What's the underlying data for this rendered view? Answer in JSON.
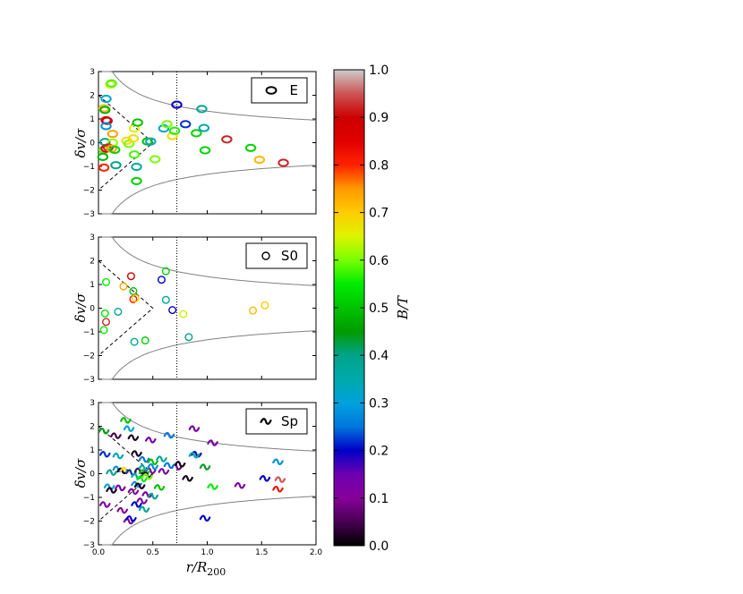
{
  "chart_data": [
    {
      "panel": "E",
      "type": "scatter",
      "marker": "ellipse",
      "legend_label": "E",
      "legend_position": "top-right",
      "xlim": [
        0.0,
        2.0
      ],
      "ylim": [
        -3,
        3
      ],
      "xticks": [
        "0.0",
        "0.5",
        "1.0",
        "1.5",
        "2.0"
      ],
      "yticks": [
        "−3",
        "−2",
        "−1",
        "0",
        "1",
        "2",
        "3"
      ],
      "xlabel": "",
      "ylabel": "δv/σ",
      "points": [
        {
          "x": 0.11,
          "y": 2.45,
          "bt": 0.65
        },
        {
          "x": 0.12,
          "y": 2.5,
          "bt": 0.58
        },
        {
          "x": 0.07,
          "y": 1.85,
          "bt": 0.32
        },
        {
          "x": 0.05,
          "y": 1.45,
          "bt": 0.72
        },
        {
          "x": 0.06,
          "y": 1.38,
          "bt": 0.48
        },
        {
          "x": 0.07,
          "y": 0.95,
          "bt": 0.84
        },
        {
          "x": 0.08,
          "y": 0.92,
          "bt": 0.9
        },
        {
          "x": 0.07,
          "y": 0.7,
          "bt": 0.28
        },
        {
          "x": 0.13,
          "y": 0.37,
          "bt": 0.74
        },
        {
          "x": 0.06,
          "y": 0.03,
          "bt": 0.38
        },
        {
          "x": 0.13,
          "y": 0.0,
          "bt": 0.62
        },
        {
          "x": 0.05,
          "y": -0.3,
          "bt": 0.58
        },
        {
          "x": 0.07,
          "y": -0.25,
          "bt": 0.86
        },
        {
          "x": 0.09,
          "y": -0.2,
          "bt": 0.92
        },
        {
          "x": 0.12,
          "y": -0.25,
          "bt": 0.74
        },
        {
          "x": 0.15,
          "y": -0.3,
          "bt": 0.52
        },
        {
          "x": 0.04,
          "y": -0.6,
          "bt": 0.48
        },
        {
          "x": 0.05,
          "y": -1.05,
          "bt": 0.8
        },
        {
          "x": 0.16,
          "y": -0.95,
          "bt": 0.4
        },
        {
          "x": 0.26,
          "y": 0.08,
          "bt": 0.68
        },
        {
          "x": 0.28,
          "y": -0.05,
          "bt": 0.6
        },
        {
          "x": 0.32,
          "y": 0.18,
          "bt": 0.68
        },
        {
          "x": 0.33,
          "y": -0.5,
          "bt": 0.58
        },
        {
          "x": 0.35,
          "y": -1.02,
          "bt": 0.36
        },
        {
          "x": 0.33,
          "y": 0.6,
          "bt": 0.66
        },
        {
          "x": 0.36,
          "y": 0.85,
          "bt": 0.5
        },
        {
          "x": 0.35,
          "y": -1.62,
          "bt": 0.52
        },
        {
          "x": 0.45,
          "y": 0.05,
          "bt": 0.5
        },
        {
          "x": 0.48,
          "y": 0.05,
          "bt": 0.34
        },
        {
          "x": 0.52,
          "y": -0.7,
          "bt": 0.6
        },
        {
          "x": 0.6,
          "y": 0.6,
          "bt": 0.32
        },
        {
          "x": 0.63,
          "y": 0.78,
          "bt": 0.6
        },
        {
          "x": 0.68,
          "y": 0.28,
          "bt": 0.68
        },
        {
          "x": 0.7,
          "y": 0.5,
          "bt": 0.56
        },
        {
          "x": 0.72,
          "y": 1.6,
          "bt": 0.2
        },
        {
          "x": 0.8,
          "y": 0.78,
          "bt": 0.22
        },
        {
          "x": 0.9,
          "y": 0.4,
          "bt": 0.52
        },
        {
          "x": 0.95,
          "y": 1.42,
          "bt": 0.38
        },
        {
          "x": 0.97,
          "y": 0.62,
          "bt": 0.34
        },
        {
          "x": 0.98,
          "y": -0.32,
          "bt": 0.52
        },
        {
          "x": 1.18,
          "y": 0.14,
          "bt": 0.92
        },
        {
          "x": 1.4,
          "y": -0.22,
          "bt": 0.52
        },
        {
          "x": 1.48,
          "y": -0.72,
          "bt": 0.72
        },
        {
          "x": 1.7,
          "y": -0.85,
          "bt": 0.92
        }
      ]
    },
    {
      "panel": "S0",
      "type": "scatter",
      "marker": "circle",
      "legend_label": "S0",
      "legend_position": "top-right",
      "xlim": [
        0.0,
        2.0
      ],
      "ylim": [
        -3,
        3
      ],
      "xticks": [
        "0.0",
        "0.5",
        "1.0",
        "1.5",
        "2.0"
      ],
      "yticks": [
        "−3",
        "−2",
        "−1",
        "0",
        "1",
        "2",
        "3"
      ],
      "xlabel": "",
      "ylabel": "δv/σ",
      "points": [
        {
          "x": 0.07,
          "y": 1.1,
          "bt": 0.55
        },
        {
          "x": 0.06,
          "y": -0.22,
          "bt": 0.55
        },
        {
          "x": 0.07,
          "y": -0.58,
          "bt": 0.92
        },
        {
          "x": 0.05,
          "y": -0.92,
          "bt": 0.55
        },
        {
          "x": 0.18,
          "y": -0.15,
          "bt": 0.38
        },
        {
          "x": 0.23,
          "y": 0.92,
          "bt": 0.74
        },
        {
          "x": 0.3,
          "y": 1.35,
          "bt": 0.9
        },
        {
          "x": 0.32,
          "y": 0.38,
          "bt": 0.82
        },
        {
          "x": 0.32,
          "y": 0.72,
          "bt": 0.5
        },
        {
          "x": 0.34,
          "y": 0.42,
          "bt": 0.7
        },
        {
          "x": 0.33,
          "y": -1.42,
          "bt": 0.38
        },
        {
          "x": 0.43,
          "y": -1.36,
          "bt": 0.52
        },
        {
          "x": 0.58,
          "y": 1.2,
          "bt": 0.2
        },
        {
          "x": 0.62,
          "y": 1.56,
          "bt": 0.52
        },
        {
          "x": 0.62,
          "y": 0.35,
          "bt": 0.38
        },
        {
          "x": 0.68,
          "y": -0.08,
          "bt": 0.2
        },
        {
          "x": 0.78,
          "y": -0.25,
          "bt": 0.64
        },
        {
          "x": 0.83,
          "y": -1.22,
          "bt": 0.4
        },
        {
          "x": 1.42,
          "y": -0.1,
          "bt": 0.72
        },
        {
          "x": 1.53,
          "y": 0.12,
          "bt": 0.7
        }
      ]
    },
    {
      "panel": "Sp",
      "type": "scatter",
      "marker": "squiggle",
      "legend_label": "Sp",
      "legend_position": "top-right",
      "xlim": [
        0.0,
        2.0
      ],
      "ylim": [
        -3,
        3
      ],
      "xticks": [
        "0.0",
        "0.5",
        "1.0",
        "1.5",
        "2.0"
      ],
      "yticks": [
        "−3",
        "−2",
        "−1",
        "0",
        "1",
        "2",
        "3"
      ],
      "xlabel": "r/R200",
      "ylabel": "δv/σ",
      "points": [
        {
          "x": 0.25,
          "y": 2.25,
          "bt": 0.5
        },
        {
          "x": 0.05,
          "y": 1.8,
          "bt": 0.44
        },
        {
          "x": 0.16,
          "y": 1.6,
          "bt": 0.05
        },
        {
          "x": 0.28,
          "y": 1.9,
          "bt": 0.32
        },
        {
          "x": 0.32,
          "y": 1.52,
          "bt": 0.02
        },
        {
          "x": 0.48,
          "y": 1.42,
          "bt": 0.12
        },
        {
          "x": 0.65,
          "y": 1.62,
          "bt": 0.25
        },
        {
          "x": 0.88,
          "y": 1.9,
          "bt": 0.12
        },
        {
          "x": 1.05,
          "y": 1.3,
          "bt": 0.12
        },
        {
          "x": 0.06,
          "y": 0.82,
          "bt": 0.22
        },
        {
          "x": 0.18,
          "y": 0.75,
          "bt": 0.34
        },
        {
          "x": 0.35,
          "y": 0.85,
          "bt": 0.02
        },
        {
          "x": 0.42,
          "y": 0.6,
          "bt": 0.25
        },
        {
          "x": 0.5,
          "y": 0.5,
          "bt": 0.5
        },
        {
          "x": 0.58,
          "y": 0.62,
          "bt": 0.38
        },
        {
          "x": 0.72,
          "y": 0.28,
          "bt": 0.08
        },
        {
          "x": 0.75,
          "y": 0.4,
          "bt": 0.02
        },
        {
          "x": 0.9,
          "y": 0.82,
          "bt": 0.2
        },
        {
          "x": 0.88,
          "y": 0.78,
          "bt": 0.36
        },
        {
          "x": 0.98,
          "y": 0.28,
          "bt": 0.44
        },
        {
          "x": 0.12,
          "y": 0.05,
          "bt": 0.4
        },
        {
          "x": 0.18,
          "y": 0.2,
          "bt": 0.28
        },
        {
          "x": 0.22,
          "y": 0.12,
          "bt": 0.02
        },
        {
          "x": 0.25,
          "y": 0.15,
          "bt": 0.68
        },
        {
          "x": 0.3,
          "y": 0.05,
          "bt": 0.22
        },
        {
          "x": 0.35,
          "y": -0.1,
          "bt": 0.38
        },
        {
          "x": 0.38,
          "y": 0.12,
          "bt": 0.05
        },
        {
          "x": 0.42,
          "y": 0.05,
          "bt": 0.5
        },
        {
          "x": 0.45,
          "y": -0.05,
          "bt": 0.02
        },
        {
          "x": 0.48,
          "y": 0.12,
          "bt": 0.12
        },
        {
          "x": 0.4,
          "y": -0.22,
          "bt": 0.55
        },
        {
          "x": 0.42,
          "y": 0.25,
          "bt": 0.36
        },
        {
          "x": 0.45,
          "y": -0.12,
          "bt": 0.6
        },
        {
          "x": 0.5,
          "y": 0.3,
          "bt": 0.28
        },
        {
          "x": 0.6,
          "y": 0.1,
          "bt": 0.12
        },
        {
          "x": 0.65,
          "y": 0.35,
          "bt": 0.25
        },
        {
          "x": 0.82,
          "y": -0.2,
          "bt": 0.02
        },
        {
          "x": 0.1,
          "y": -0.55,
          "bt": 0.3
        },
        {
          "x": 0.12,
          "y": -0.7,
          "bt": 0.02
        },
        {
          "x": 0.2,
          "y": -0.6,
          "bt": 0.12
        },
        {
          "x": 0.32,
          "y": -0.75,
          "bt": 0.1
        },
        {
          "x": 0.35,
          "y": -0.45,
          "bt": 0.28
        },
        {
          "x": 0.38,
          "y": -0.52,
          "bt": 0.02
        },
        {
          "x": 0.45,
          "y": -0.88,
          "bt": 0.12
        },
        {
          "x": 0.5,
          "y": -0.95,
          "bt": 0.38
        },
        {
          "x": 0.56,
          "y": -0.58,
          "bt": 0.5
        },
        {
          "x": 0.35,
          "y": -1.3,
          "bt": 0.2
        },
        {
          "x": 0.4,
          "y": -1.15,
          "bt": 0.1
        },
        {
          "x": 0.06,
          "y": -1.3,
          "bt": 0.12
        },
        {
          "x": 0.22,
          "y": -1.55,
          "bt": 0.1
        },
        {
          "x": 0.42,
          "y": -1.5,
          "bt": 0.38
        },
        {
          "x": 0.28,
          "y": -2.0,
          "bt": 0.12
        },
        {
          "x": 0.3,
          "y": -1.9,
          "bt": 0.2
        },
        {
          "x": 0.98,
          "y": -1.88,
          "bt": 0.2
        },
        {
          "x": 1.05,
          "y": -0.55,
          "bt": 0.55
        },
        {
          "x": 1.3,
          "y": -0.5,
          "bt": 0.12
        },
        {
          "x": 1.53,
          "y": -0.2,
          "bt": 0.2
        },
        {
          "x": 1.65,
          "y": 0.5,
          "bt": 0.28
        },
        {
          "x": 1.67,
          "y": -0.25,
          "bt": 0.95
        },
        {
          "x": 1.65,
          "y": -0.65,
          "bt": 0.82
        }
      ]
    }
  ],
  "colorbar": {
    "label": "B/T",
    "range": [
      0.0,
      1.0
    ],
    "ticks": [
      "0.0",
      "0.1",
      "0.2",
      "0.3",
      "0.4",
      "0.5",
      "0.6",
      "0.7",
      "0.8",
      "0.9",
      "1.0"
    ],
    "colormap": "nipy_spectral"
  }
}
